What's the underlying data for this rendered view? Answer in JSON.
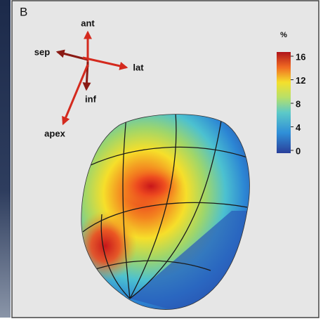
{
  "panel_label": "B",
  "orientation": {
    "ant": "ant",
    "sep": "sep",
    "lat": "lat",
    "inf": "inf",
    "apex": "apex"
  },
  "colorbar": {
    "unit": "%",
    "range": [
      0,
      16
    ],
    "ticks": [
      0,
      4,
      8,
      12,
      16
    ]
  }
}
